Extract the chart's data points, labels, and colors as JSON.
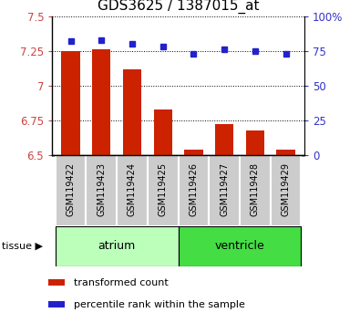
{
  "title": "GDS3625 / 1387015_at",
  "samples": [
    "GSM119422",
    "GSM119423",
    "GSM119424",
    "GSM119425",
    "GSM119426",
    "GSM119427",
    "GSM119428",
    "GSM119429"
  ],
  "transformed_count": [
    7.25,
    7.26,
    7.12,
    6.83,
    6.54,
    6.72,
    6.68,
    6.54
  ],
  "percentile_rank": [
    82,
    83,
    80,
    78,
    73,
    76,
    75,
    73
  ],
  "ylim_left": [
    6.5,
    7.5
  ],
  "ylim_right": [
    0,
    100
  ],
  "yticks_left": [
    6.5,
    6.75,
    7.0,
    7.25,
    7.5
  ],
  "yticks_right": [
    0,
    25,
    50,
    75,
    100
  ],
  "ytick_labels_left": [
    "6.5",
    "6.75",
    "7",
    "7.25",
    "7.5"
  ],
  "ytick_labels_right": [
    "0",
    "25",
    "50",
    "75",
    "100%"
  ],
  "bar_color": "#cc2200",
  "dot_color": "#2222cc",
  "bar_bottom": 6.5,
  "groups": [
    {
      "label": "atrium",
      "samples": [
        0,
        1,
        2,
        3
      ],
      "color": "#bbffbb"
    },
    {
      "label": "ventricle",
      "samples": [
        4,
        5,
        6,
        7
      ],
      "color": "#44dd44"
    }
  ],
  "group_label_prefix": "tissue",
  "axis_label_color_left": "#cc4444",
  "axis_label_color_right": "#3333cc",
  "sample_bg_color": "#cccccc",
  "sample_label_fontsize": 7,
  "group_label_fontsize": 9,
  "title_fontsize": 11,
  "legend_fontsize": 8
}
